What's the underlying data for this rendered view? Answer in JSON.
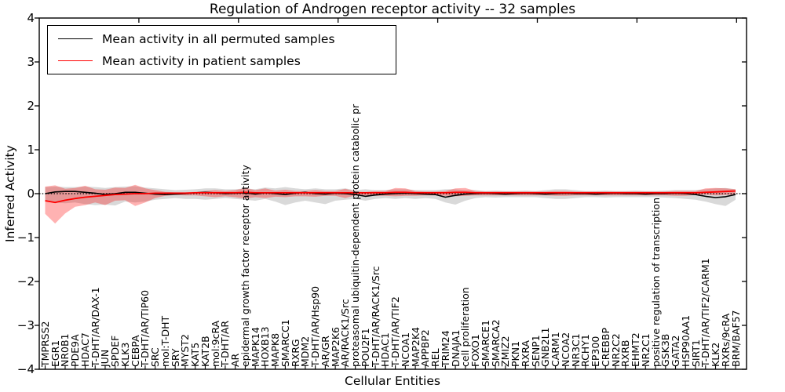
{
  "figure": {
    "background": "#ffffff"
  },
  "legend": {
    "entries": [
      {
        "label": "Mean activity in all permuted samples",
        "color": "#000000"
      },
      {
        "label": "Mean activity in patient samples",
        "color": "#ff0000"
      }
    ]
  },
  "chart_data": {
    "type": "line",
    "title": "Regulation of Androgen receptor activity -- 32 samples",
    "xlabel": "Cellular Entities",
    "ylabel": "Inferred Activity",
    "ylim": [
      -4,
      4
    ],
    "yticks": [
      4,
      3,
      2,
      1,
      0,
      -1,
      -2,
      -3,
      -4
    ],
    "grid": false,
    "legend_position": "upper left",
    "zero_reference_line": "dotted black at y=0",
    "x_tick_label_rotation": 90,
    "categories": [
      "TMPRSS2",
      "EGR1",
      "NR0B1",
      "PDE9A",
      "HDAC7",
      "T-DHT/AR/DAX-1",
      "JUN",
      "SPDEF",
      "KLK3",
      "CEBPA",
      "T-DHT/AR/TIP60",
      "SRC",
      "mol:T-DHT",
      "SRY",
      "MYST2",
      "KAT5",
      "KAT2B",
      "mol:9cRA",
      "T-DHT/AR",
      "AR",
      "epidermal growth factor receptor activity",
      "MAPK14",
      "HOXB13",
      "MAPK8",
      "SMARCC1",
      "RXRG",
      "MDM2",
      "T-DHT/AR/Hsp90",
      "AR/GR",
      "MAP2K6",
      "AR/RACK1/Src",
      "proteasomal ubiquitin-dependent protein catabolic pr",
      "POU2F1",
      "T-DHT/AR/RACK1/Src",
      "HDAC1",
      "T-DHT/AR/TIF2",
      "NCOA1",
      "MAP2K4",
      "APPBP2",
      "REL",
      "TRIM24",
      "DNAJA1",
      "cell proliferation",
      "FOXO1",
      "SMARCE1",
      "SMARCA2",
      "ZMIZ2",
      "PKN1",
      "RXRA",
      "SENP1",
      "GNB2L1",
      "CARM1",
      "NCOA2",
      "NR3C1",
      "RCHY1",
      "EP300",
      "CREBBP",
      "NR2C2",
      "RXRB",
      "EHMT2",
      "NR2C1",
      "positive regulation of transcription",
      "GSK3B",
      "GATA2",
      "HSP90AA1",
      "SIRT1",
      "T-DHT/AR/TIF2/CARM1",
      "KLK2",
      "RXRs/9cRA",
      "BRM/BAF57"
    ],
    "series": [
      {
        "name": "Mean activity in all permuted samples",
        "color": "#000000",
        "band_color": "rgba(0,0,0,0.15)",
        "values": [
          0.0,
          0.04,
          0.05,
          0.05,
          0.03,
          0.01,
          -0.02,
          0.0,
          0.03,
          0.03,
          0.01,
          -0.01,
          -0.02,
          -0.01,
          0.0,
          0.02,
          0.03,
          0.02,
          0.0,
          0.01,
          0.02,
          -0.01,
          0.02,
          0.0,
          -0.02,
          0.01,
          0.03,
          0.0,
          -0.01,
          0.01,
          0.0,
          -0.02,
          -0.06,
          -0.03,
          -0.01,
          0.0,
          0.01,
          0.0,
          -0.01,
          -0.02,
          -0.08,
          -0.04,
          -0.01,
          0.0,
          0.01,
          0.0,
          -0.01,
          0.0,
          0.01,
          0.0,
          -0.01,
          0.0,
          0.01,
          0.0,
          0.0,
          -0.01,
          0.0,
          0.01,
          0.0,
          0.0,
          -0.01,
          0.0,
          0.0,
          0.01,
          0.0,
          -0.02,
          -0.06,
          -0.09,
          -0.07,
          -0.02
        ],
        "band_upper": [
          0.15,
          0.16,
          0.15,
          0.15,
          0.16,
          0.15,
          0.13,
          0.15,
          0.16,
          0.17,
          0.14,
          0.12,
          0.1,
          0.08,
          0.09,
          0.1,
          0.12,
          0.12,
          0.1,
          0.1,
          0.12,
          0.1,
          0.14,
          0.12,
          0.15,
          0.12,
          0.1,
          0.12,
          0.1,
          0.1,
          0.12,
          0.08,
          0.1,
          0.08,
          0.08,
          0.1,
          0.1,
          0.08,
          0.08,
          0.08,
          0.1,
          0.1,
          0.08,
          0.08,
          0.06,
          0.07,
          0.06,
          0.06,
          0.07,
          0.06,
          0.08,
          0.1,
          0.1,
          0.08,
          0.06,
          0.06,
          0.07,
          0.06,
          0.06,
          0.07,
          0.06,
          0.06,
          0.07,
          0.08,
          0.08,
          0.08,
          0.1,
          0.12,
          0.13,
          0.1
        ],
        "band_lower": [
          -0.18,
          -0.2,
          -0.22,
          -0.2,
          -0.24,
          -0.26,
          -0.25,
          -0.27,
          -0.18,
          -0.2,
          -0.18,
          -0.14,
          -0.12,
          -0.1,
          -0.12,
          -0.12,
          -0.14,
          -0.12,
          -0.1,
          -0.12,
          -0.14,
          -0.16,
          -0.12,
          -0.18,
          -0.26,
          -0.2,
          -0.16,
          -0.2,
          -0.24,
          -0.16,
          -0.14,
          -0.12,
          -0.16,
          -0.12,
          -0.1,
          -0.12,
          -0.1,
          -0.12,
          -0.1,
          -0.12,
          -0.2,
          -0.25,
          -0.16,
          -0.1,
          -0.08,
          -0.09,
          -0.08,
          -0.08,
          -0.08,
          -0.08,
          -0.1,
          -0.12,
          -0.12,
          -0.1,
          -0.08,
          -0.08,
          -0.09,
          -0.08,
          -0.08,
          -0.08,
          -0.08,
          -0.08,
          -0.09,
          -0.1,
          -0.12,
          -0.14,
          -0.18,
          -0.24,
          -0.28,
          -0.14
        ]
      },
      {
        "name": "Mean activity in patient samples",
        "color": "#ff0000",
        "band_color": "rgba(255,0,0,0.30)",
        "values": [
          -0.16,
          -0.2,
          -0.15,
          -0.11,
          -0.08,
          -0.06,
          -0.04,
          -0.02,
          -0.01,
          0.0,
          0.0,
          0.01,
          0.01,
          0.01,
          0.01,
          0.02,
          0.02,
          0.02,
          0.02,
          0.02,
          0.03,
          0.02,
          0.02,
          0.02,
          0.02,
          0.02,
          0.02,
          0.02,
          0.02,
          0.02,
          0.02,
          0.02,
          0.02,
          0.02,
          0.02,
          0.03,
          0.03,
          0.02,
          0.02,
          0.02,
          0.02,
          0.03,
          0.03,
          0.02,
          0.02,
          0.02,
          0.02,
          0.02,
          0.02,
          0.02,
          0.02,
          0.02,
          0.02,
          0.02,
          0.02,
          0.02,
          0.02,
          0.02,
          0.02,
          0.02,
          0.02,
          0.02,
          0.02,
          0.02,
          0.02,
          0.02,
          0.03,
          0.04,
          0.05,
          0.06
        ],
        "band_upper": [
          0.16,
          0.19,
          0.11,
          0.13,
          0.18,
          0.1,
          0.09,
          0.14,
          0.13,
          0.2,
          0.12,
          0.08,
          0.04,
          0.03,
          0.03,
          0.04,
          0.06,
          0.08,
          0.06,
          0.08,
          0.13,
          0.08,
          0.12,
          0.07,
          0.09,
          0.06,
          0.06,
          0.08,
          0.06,
          0.06,
          0.11,
          0.05,
          0.04,
          0.06,
          0.06,
          0.13,
          0.12,
          0.06,
          0.05,
          0.05,
          0.06,
          0.12,
          0.13,
          0.06,
          0.05,
          0.05,
          0.05,
          0.05,
          0.05,
          0.05,
          0.05,
          0.06,
          0.06,
          0.05,
          0.05,
          0.05,
          0.05,
          0.05,
          0.05,
          0.05,
          0.05,
          0.05,
          0.05,
          0.06,
          0.06,
          0.06,
          0.12,
          0.13,
          0.12,
          0.1
        ],
        "band_lower": [
          -0.46,
          -0.68,
          -0.45,
          -0.3,
          -0.26,
          -0.2,
          -0.26,
          -0.16,
          -0.15,
          -0.28,
          -0.2,
          -0.1,
          -0.05,
          -0.03,
          -0.04,
          -0.04,
          -0.06,
          -0.08,
          -0.06,
          -0.08,
          -0.11,
          -0.08,
          -0.1,
          -0.07,
          -0.08,
          -0.06,
          -0.06,
          -0.07,
          -0.05,
          -0.05,
          -0.1,
          -0.04,
          -0.04,
          -0.05,
          -0.05,
          -0.06,
          -0.05,
          -0.05,
          -0.04,
          -0.04,
          -0.05,
          -0.06,
          -0.05,
          -0.04,
          -0.04,
          -0.04,
          -0.04,
          -0.04,
          -0.04,
          -0.04,
          -0.04,
          -0.05,
          -0.05,
          -0.04,
          -0.04,
          -0.04,
          -0.04,
          -0.04,
          -0.04,
          -0.04,
          -0.04,
          -0.04,
          -0.04,
          -0.05,
          -0.05,
          -0.03,
          -0.02,
          -0.04,
          -0.03,
          -0.02
        ]
      }
    ]
  }
}
